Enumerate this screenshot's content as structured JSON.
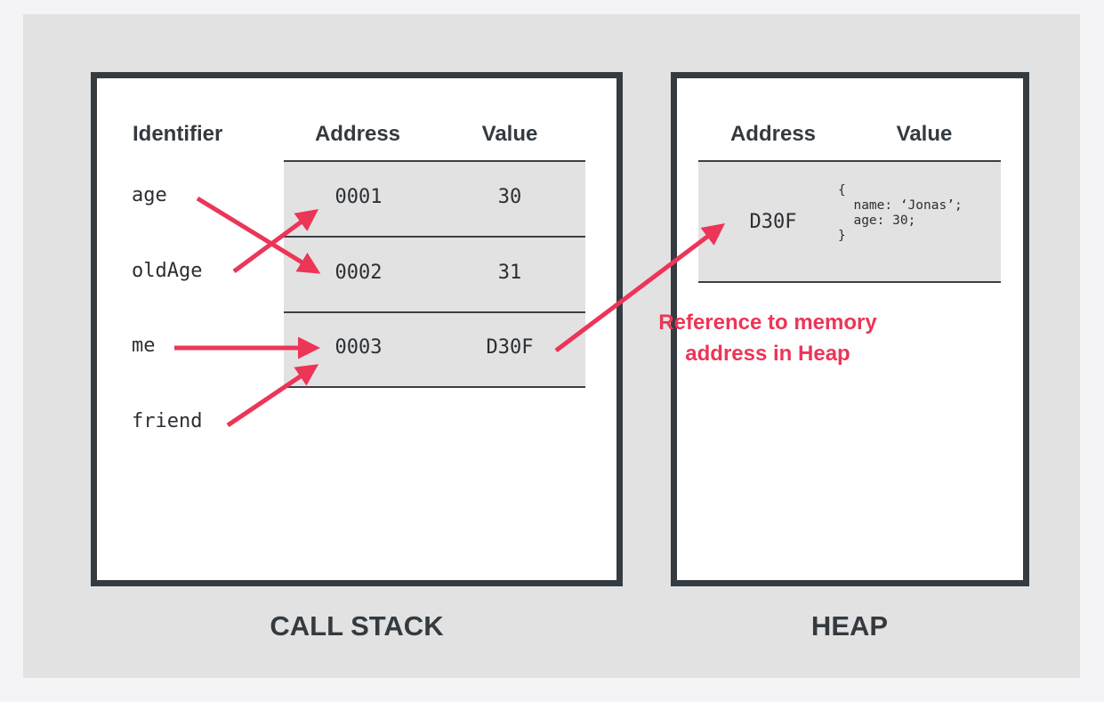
{
  "call_stack": {
    "title": "CALL STACK",
    "headers": {
      "identifier": "Identifier",
      "address": "Address",
      "value": "Value"
    },
    "identifiers": [
      "age",
      "oldAge",
      "me",
      "friend"
    ],
    "rows": [
      {
        "address": "0001",
        "value": "30"
      },
      {
        "address": "0002",
        "value": "31"
      },
      {
        "address": "0003",
        "value": "D30F"
      }
    ]
  },
  "heap": {
    "title": "HEAP",
    "headers": {
      "address": "Address",
      "value": "Value"
    },
    "entry": {
      "address": "D30F",
      "value_lines": [
        "{",
        "  name: ‘Jonas’;",
        "  age: 30;",
        "}"
      ]
    }
  },
  "annotation": {
    "line1": "Reference to memory",
    "line2": "address in Heap"
  },
  "colors": {
    "arrow": "#ec3557",
    "frame": "#343c42",
    "band": "#e2e2e2",
    "background": "#f4f4f6"
  }
}
